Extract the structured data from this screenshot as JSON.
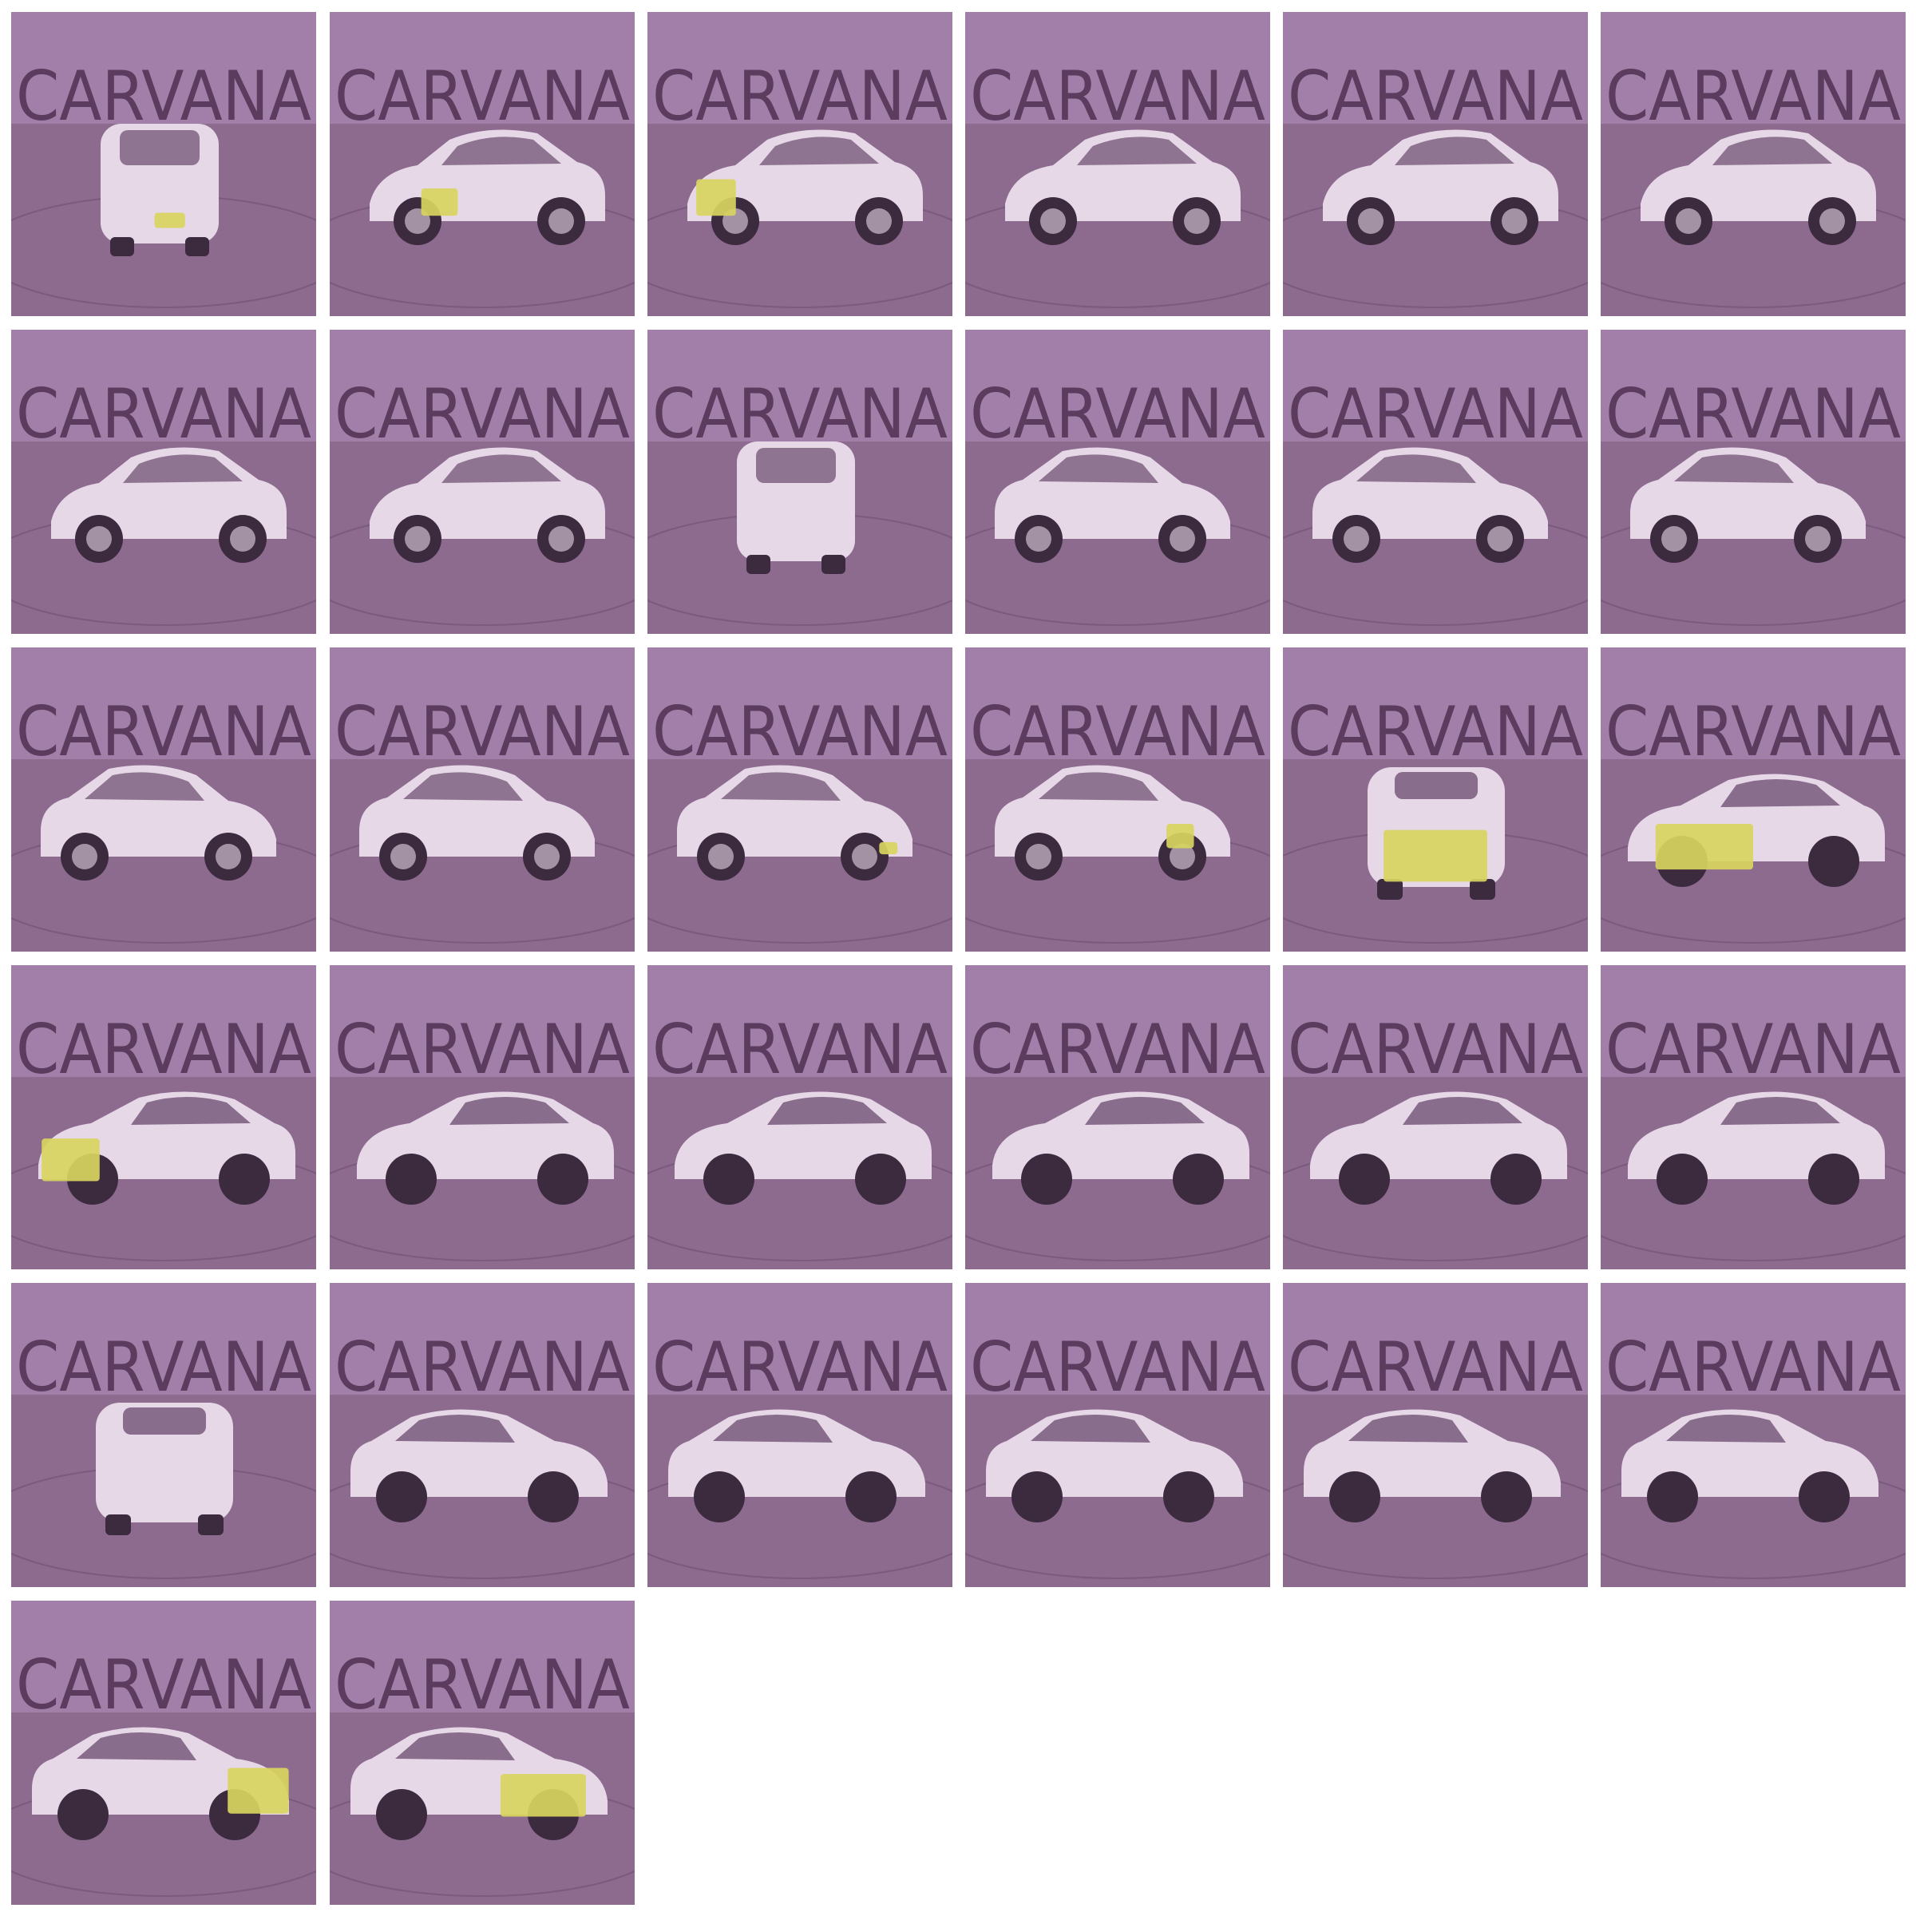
{
  "colors": {
    "background": "#ffffff",
    "wall": "#a27fa9",
    "floor": "#8c6b8f",
    "floor_ring": "#6f4f72",
    "logo": "#5b3b5e",
    "car_body": "#e7d8e8",
    "car_glass": "#6a4a6d",
    "tire": "#3c2a3e",
    "mask": "#d8d560"
  },
  "watermark_text": "CARVANA",
  "car_models": [
    "sedan",
    "coupe"
  ],
  "grid": {
    "columns": 6,
    "rows": 6
  },
  "tiles": [
    {
      "car": "sedan",
      "view": "front",
      "mask": [
        0.47,
        0.66,
        0.1,
        0.05
      ]
    },
    {
      "car": "sedan",
      "view": "front-left",
      "mask": [
        0.3,
        0.58,
        0.12,
        0.09
      ]
    },
    {
      "car": "sedan",
      "view": "front-left",
      "mask": [
        0.16,
        0.55,
        0.13,
        0.12
      ]
    },
    {
      "car": "sedan",
      "view": "left"
    },
    {
      "car": "sedan",
      "view": "left"
    },
    {
      "car": "sedan",
      "view": "left"
    },
    {
      "car": "sedan",
      "view": "rear-left"
    },
    {
      "car": "sedan",
      "view": "rear-left"
    },
    {
      "car": "sedan",
      "view": "rear"
    },
    {
      "car": "sedan",
      "view": "rear-right"
    },
    {
      "car": "sedan",
      "view": "rear-right"
    },
    {
      "car": "sedan",
      "view": "right"
    },
    {
      "car": "sedan",
      "view": "right"
    },
    {
      "car": "sedan",
      "view": "right"
    },
    {
      "car": "sedan",
      "view": "front-right",
      "mask": [
        0.76,
        0.64,
        0.06,
        0.04
      ]
    },
    {
      "car": "sedan",
      "view": "front-right",
      "mask": [
        0.66,
        0.58,
        0.09,
        0.08
      ]
    },
    {
      "car": "coupe",
      "view": "front",
      "mask": [
        0.33,
        0.6,
        0.34,
        0.17
      ]
    },
    {
      "car": "coupe",
      "view": "front-left",
      "mask": [
        0.18,
        0.58,
        0.32,
        0.15
      ]
    },
    {
      "car": "coupe",
      "view": "front-left",
      "mask": [
        0.1,
        0.57,
        0.19,
        0.14
      ]
    },
    {
      "car": "coupe",
      "view": "left"
    },
    {
      "car": "coupe",
      "view": "left"
    },
    {
      "car": "coupe",
      "view": "rear-left"
    },
    {
      "car": "coupe",
      "view": "rear-left"
    },
    {
      "car": "coupe",
      "view": "rear-left"
    },
    {
      "car": "coupe",
      "view": "rear"
    },
    {
      "car": "coupe",
      "view": "rear-right"
    },
    {
      "car": "coupe",
      "view": "rear-right"
    },
    {
      "car": "coupe",
      "view": "right"
    },
    {
      "car": "coupe",
      "view": "right"
    },
    {
      "car": "coupe",
      "view": "right"
    },
    {
      "car": "coupe",
      "view": "front-right",
      "mask": [
        0.71,
        0.55,
        0.2,
        0.15
      ]
    },
    {
      "car": "coupe",
      "view": "front-right",
      "mask": [
        0.56,
        0.57,
        0.28,
        0.14
      ]
    }
  ]
}
